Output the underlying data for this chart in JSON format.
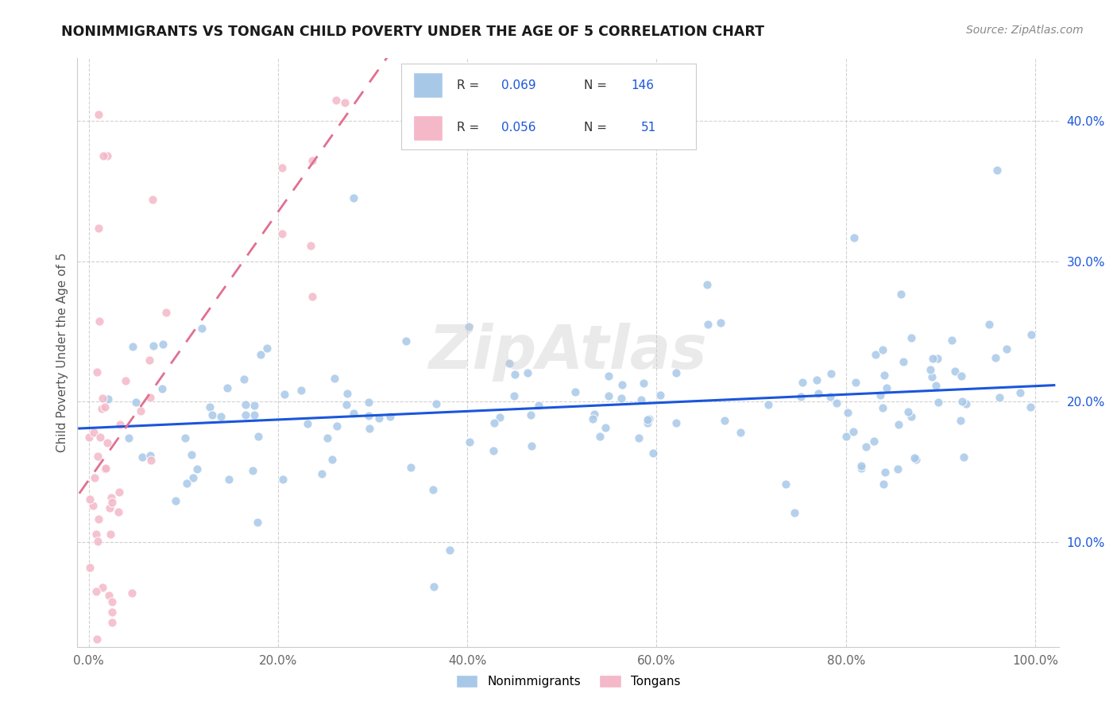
{
  "title": "NONIMMIGRANTS VS TONGAN CHILD POVERTY UNDER THE AGE OF 5 CORRELATION CHART",
  "source": "Source: ZipAtlas.com",
  "ylabel": "Child Poverty Under the Age of 5",
  "legend_labels": [
    "Nonimmigrants",
    "Tongans"
  ],
  "R_nonimm": 0.069,
  "N_nonimm": 146,
  "R_tong": 0.056,
  "N_tong": 51,
  "blue_color": "#a8c8e8",
  "pink_color": "#f4b8c8",
  "trend_blue": "#1a56db",
  "trend_pink": "#e07090",
  "watermark": "ZipAtlas",
  "title_fontsize": 12.5,
  "label_fontsize": 11,
  "tick_fontsize": 11,
  "source_fontsize": 10
}
